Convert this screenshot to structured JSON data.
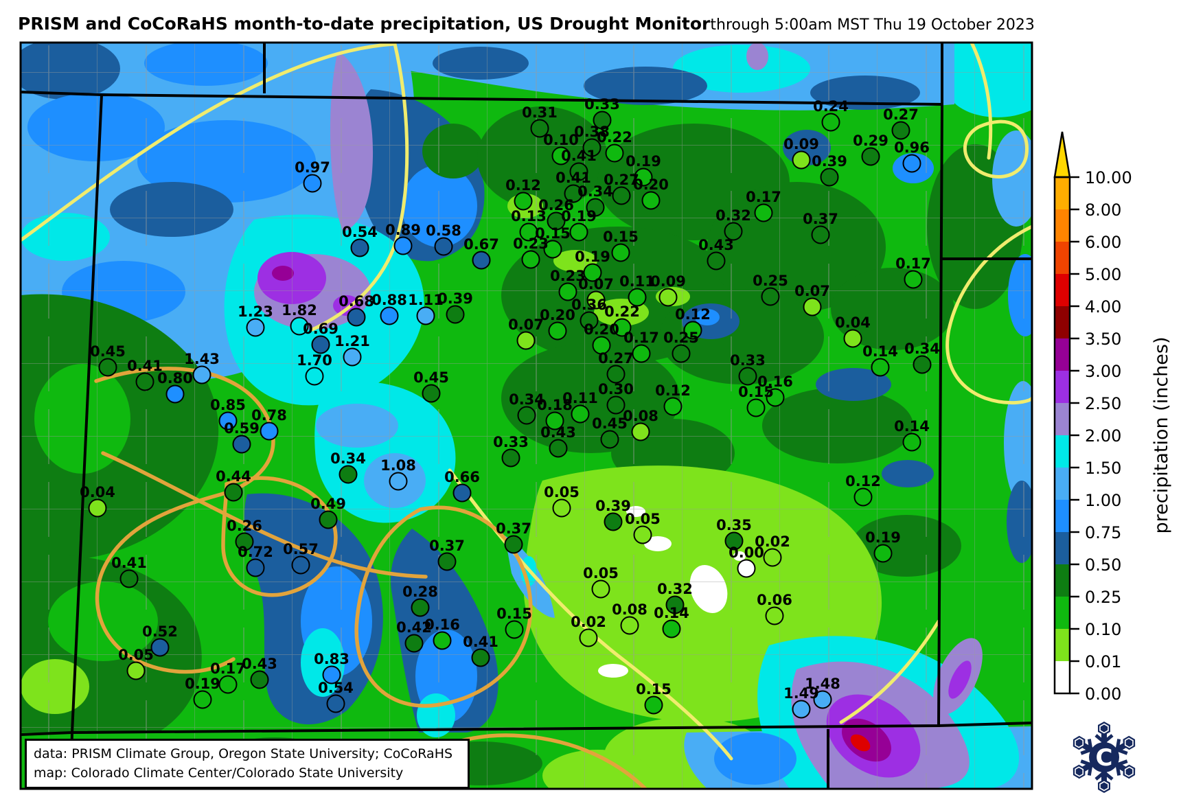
{
  "title": {
    "main": "PRISM and CoCoRaHS month-to-date precipitation, US Drought Monitor",
    "timestamp": "through 5:00am MST Thu 19 October 2023"
  },
  "footer": {
    "line1": "data: PRISM Climate Group, Oregon State University; CoCoRaHS",
    "line2": "map: Colorado Climate Center/Colorado State University"
  },
  "colorbar": {
    "axis_label": "precipitation (inches)",
    "tick_labels": [
      "10.00",
      "8.00",
      "6.00",
      "5.00",
      "4.00",
      "3.50",
      "3.00",
      "2.50",
      "2.00",
      "1.50",
      "1.00",
      "0.75",
      "0.50",
      "0.25",
      "0.10",
      "0.01",
      "0.00"
    ],
    "segment_colors_top_to_bottom": [
      "#FFAD00",
      "#FF8400",
      "#EF4400",
      "#DE0000",
      "#8F0000",
      "#960096",
      "#9D2FE3",
      "#9B84D2",
      "#00E8E8",
      "#49ADF5",
      "#1E8FFF",
      "#1B5E9E",
      "#0E7D12",
      "#0FB90F",
      "#7EE31C",
      "#FFFFFF"
    ],
    "arrow_color": "#FFD700"
  },
  "legend_semantics": {
    "units": "inches",
    "bins_upper_bounds": [
      0.01,
      0.1,
      0.25,
      0.5,
      0.75,
      1.0,
      1.5,
      2.0,
      2.5,
      3.0,
      3.5,
      4.0,
      5.0,
      6.0,
      8.0,
      10.0
    ],
    "bin_colors": [
      "#FFFFFF",
      "#7EE31C",
      "#0FB90F",
      "#0E7D12",
      "#1B5E9E",
      "#1E8FFF",
      "#49ADF5",
      "#00E8E8",
      "#9B84D2",
      "#9D2FE3",
      "#960096",
      "#8F0000",
      "#DE0000",
      "#EF4400",
      "#FF8400",
      "#FFAD00"
    ]
  },
  "logo": {
    "name": "Colorado Climate Center snowflake logo",
    "letter": "C",
    "color": "#16295E"
  },
  "stations": [
    [
      "0.97",
      455,
      267
    ],
    [
      "0.31",
      786,
      187
    ],
    [
      "0.33",
      877,
      175
    ],
    [
      "0.10",
      817,
      227
    ],
    [
      "0.38",
      862,
      215
    ],
    [
      "0.22",
      895,
      223
    ],
    [
      "0.41",
      843,
      250
    ],
    [
      "0.19",
      937,
      258
    ],
    [
      "0.41",
      835,
      282
    ],
    [
      "0.27",
      905,
      285
    ],
    [
      "0.20",
      948,
      292
    ],
    [
      "0.34",
      867,
      302
    ],
    [
      "0.12",
      762,
      293
    ],
    [
      "0.26",
      810,
      322
    ],
    [
      "0.13",
      770,
      338
    ],
    [
      "0.19",
      843,
      338
    ],
    [
      "0.15",
      805,
      363
    ],
    [
      "0.15",
      904,
      368
    ],
    [
      "0.23",
      773,
      378
    ],
    [
      "0.19",
      863,
      397
    ],
    [
      "0.24",
      1210,
      178
    ],
    [
      "0.27",
      1312,
      190
    ],
    [
      "0.09",
      1167,
      233
    ],
    [
      "0.29",
      1268,
      228
    ],
    [
      "0.96",
      1328,
      238
    ],
    [
      "0.39",
      1208,
      258
    ],
    [
      "0.17",
      1112,
      310
    ],
    [
      "0.32",
      1068,
      337
    ],
    [
      "0.37",
      1195,
      342
    ],
    [
      "0.43",
      1043,
      380
    ],
    [
      "0.25",
      1122,
      432
    ],
    [
      "0.07",
      1183,
      447
    ],
    [
      "0.17",
      1330,
      407
    ],
    [
      "0.54",
      524,
      361
    ],
    [
      "0.89",
      587,
      358
    ],
    [
      "0.58",
      646,
      359
    ],
    [
      "0.67",
      701,
      379
    ],
    [
      "0.23",
      827,
      425
    ],
    [
      "0.07",
      868,
      437
    ],
    [
      "0.11",
      928,
      433
    ],
    [
      "0.09",
      973,
      433
    ],
    [
      "0.36",
      858,
      467
    ],
    [
      "0.20",
      812,
      482
    ],
    [
      "0.22",
      906,
      477
    ],
    [
      "0.12",
      1009,
      481
    ],
    [
      "0.20",
      876,
      503
    ],
    [
      "0.17",
      934,
      515
    ],
    [
      "0.25",
      992,
      515
    ],
    [
      "0.27",
      897,
      545
    ],
    [
      "0.07",
      766,
      496
    ],
    [
      "0.68",
      519,
      462
    ],
    [
      "0.88",
      567,
      460
    ],
    [
      "1.11",
      620,
      460
    ],
    [
      "0.39",
      663,
      458
    ],
    [
      "1.23",
      372,
      477
    ],
    [
      "1.82",
      436,
      475
    ],
    [
      "0.69",
      467,
      502
    ],
    [
      "1.21",
      513,
      520
    ],
    [
      "1.70",
      458,
      548
    ],
    [
      "0.45",
      157,
      535
    ],
    [
      "0.41",
      211,
      556
    ],
    [
      "0.80",
      255,
      574
    ],
    [
      "1.43",
      294,
      546
    ],
    [
      "0.85",
      332,
      613
    ],
    [
      "0.78",
      392,
      628
    ],
    [
      "0.59",
      352,
      647
    ],
    [
      "0.45",
      628,
      573
    ],
    [
      "0.34",
      767,
      605
    ],
    [
      "0.18",
      808,
      613
    ],
    [
      "0.11",
      845,
      603
    ],
    [
      "0.30",
      897,
      590
    ],
    [
      "0.12",
      980,
      592
    ],
    [
      "0.45",
      888,
      640
    ],
    [
      "0.08",
      933,
      629
    ],
    [
      "0.43",
      813,
      653
    ],
    [
      "0.33",
      744,
      667
    ],
    [
      "0.66",
      673,
      718
    ],
    [
      "0.33",
      1089,
      548
    ],
    [
      "0.16",
      1129,
      579
    ],
    [
      "0.15",
      1101,
      594
    ],
    [
      "0.04",
      1242,
      493
    ],
    [
      "0.14",
      1282,
      535
    ],
    [
      "0.34",
      1343,
      531
    ],
    [
      "0.14",
      1328,
      644
    ],
    [
      "0.12",
      1257,
      724
    ],
    [
      "0.05",
      818,
      740
    ],
    [
      "0.39",
      893,
      760
    ],
    [
      "0.05",
      936,
      779
    ],
    [
      "0.34",
      507,
      691
    ],
    [
      "1.08",
      580,
      701
    ],
    [
      "0.44",
      340,
      717
    ],
    [
      "0.04",
      142,
      740
    ],
    [
      "0.49",
      478,
      757
    ],
    [
      "0.26",
      356,
      789
    ],
    [
      "0.72",
      372,
      827
    ],
    [
      "0.57",
      438,
      823
    ],
    [
      "0.41",
      188,
      843
    ],
    [
      "0.37",
      651,
      818
    ],
    [
      "0.37",
      748,
      793
    ],
    [
      "0.28",
      612,
      885
    ],
    [
      "0.42",
      603,
      937
    ],
    [
      "0.16",
      644,
      933
    ],
    [
      "0.41",
      700,
      958
    ],
    [
      "0.15",
      749,
      917
    ],
    [
      "0.05",
      875,
      858
    ],
    [
      "0.02",
      857,
      929
    ],
    [
      "0.52",
      233,
      943
    ],
    [
      "0.05",
      198,
      977
    ],
    [
      "0.17",
      332,
      997
    ],
    [
      "0.43",
      378,
      990
    ],
    [
      "0.19",
      295,
      1019
    ],
    [
      "0.83",
      483,
      983
    ],
    [
      "0.54",
      489,
      1025
    ],
    [
      "0.35",
      1069,
      788
    ],
    [
      "0.02",
      1125,
      812
    ],
    [
      "0.00",
      1087,
      828
    ],
    [
      "0.06",
      1128,
      897
    ],
    [
      "0.32",
      983,
      881
    ],
    [
      "0.08",
      917,
      911
    ],
    [
      "0.14",
      978,
      916
    ],
    [
      "0.15",
      952,
      1027
    ],
    [
      "1.48",
      1198,
      1019
    ],
    [
      "1.49",
      1167,
      1033
    ],
    [
      "0.19",
      1286,
      806
    ]
  ]
}
